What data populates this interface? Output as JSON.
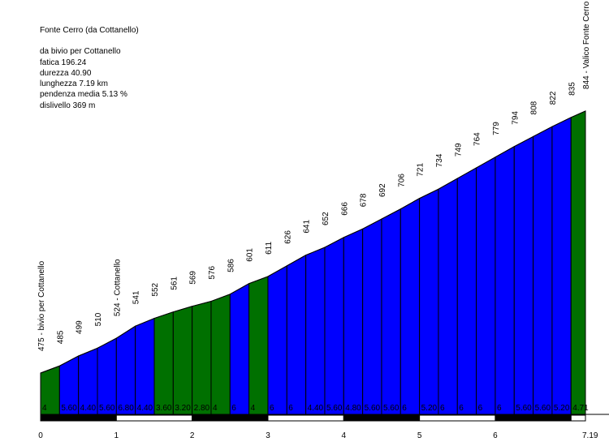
{
  "info": {
    "title": "Fonte Cerro (da Cottanello)",
    "start": "da bivio per Cottanello",
    "fatica": "fatica 196.24",
    "durezza": "durezza 40.90",
    "lunghezza": "lunghezza 7.19 km",
    "pendenza": "pendenza media 5.13 %",
    "dislivello": "dislivello 369 m"
  },
  "colors": {
    "low": "#007000",
    "high": "#0000ff",
    "outline": "#000000",
    "axis": "#000000"
  },
  "chart_data": {
    "type": "area",
    "title": "Fonte Cerro (da Cottanello)",
    "x_unit": "km",
    "xlim": [
      0,
      7.19
    ],
    "x_ticks": [
      "0",
      "1",
      "2",
      "3",
      "4",
      "5",
      "6",
      "7.19"
    ],
    "x_tick_values": [
      0,
      1,
      2,
      3,
      4,
      5,
      6,
      7.19
    ],
    "elevations": [
      475,
      485,
      499,
      510,
      524,
      541,
      552,
      561,
      569,
      576,
      586,
      601,
      611,
      626,
      641,
      652,
      666,
      678,
      692,
      706,
      721,
      734,
      749,
      764,
      779,
      794,
      808,
      822,
      835,
      844
    ],
    "elevation_labels": [
      "475 - bivio per Cottanello",
      "485",
      "499",
      "510",
      "524 - Cottanello",
      "541",
      "552",
      "561",
      "569",
      "576",
      "586",
      "601",
      "611",
      "626",
      "641",
      "652",
      "666",
      "678",
      "692",
      "706",
      "721",
      "734",
      "749",
      "764",
      "779",
      "794",
      "808",
      "822",
      "835",
      "844 - Valico Fonte Cerro"
    ],
    "gradients": [
      "4",
      "5.60",
      "4.40",
      "5.60",
      "6.80",
      "4.40",
      "3.60",
      "3.20",
      "2.80",
      "4",
      "6",
      "4",
      "6",
      "6",
      "4.40",
      "5.60",
      "4.80",
      "5.60",
      "5.60",
      "6",
      "5.20",
      "6",
      "6",
      "6",
      "6",
      "5.60",
      "5.60",
      "5.20",
      "4.71"
    ],
    "segment_category": [
      "low",
      "high",
      "high",
      "high",
      "high",
      "high",
      "low",
      "low",
      "low",
      "low",
      "high",
      "low",
      "high",
      "high",
      "high",
      "high",
      "high",
      "high",
      "high",
      "high",
      "high",
      "high",
      "high",
      "high",
      "high",
      "high",
      "high",
      "high",
      "low"
    ]
  }
}
